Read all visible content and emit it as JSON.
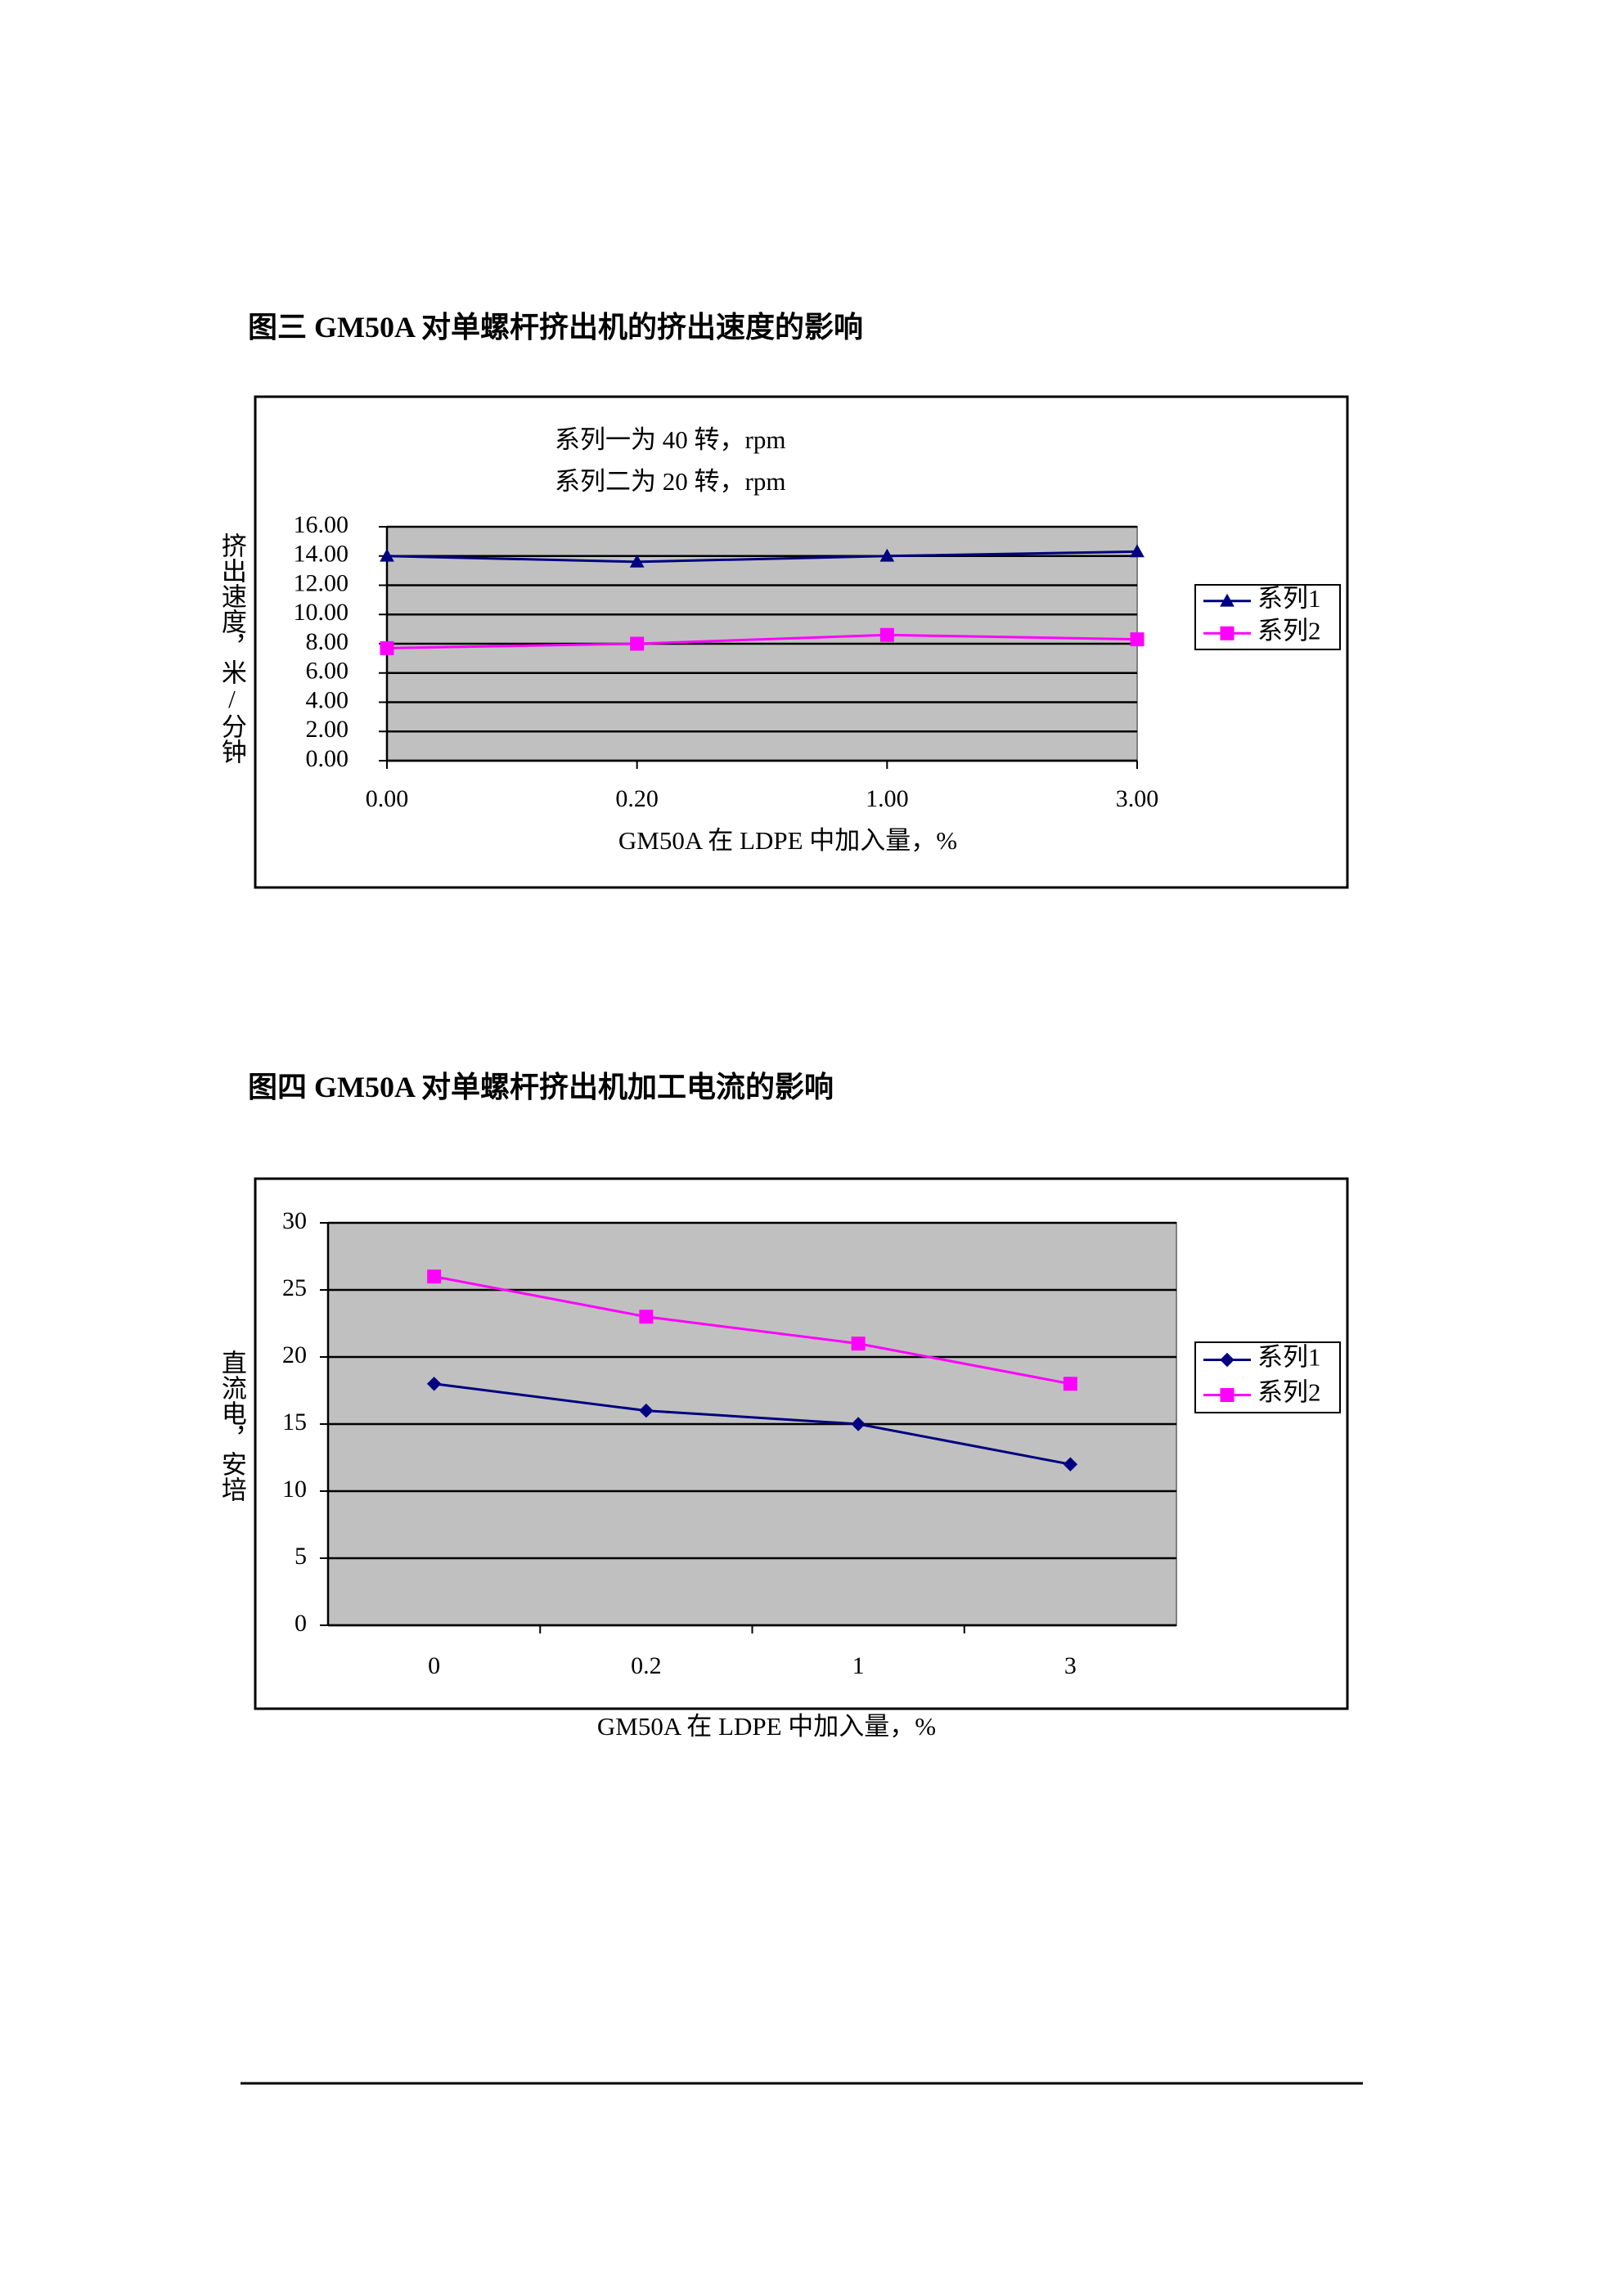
{
  "chart_data": [
    {
      "type": "line",
      "title": "图三 GM50A 对单螺杆挤出机的挤出速度的影响",
      "annotations": [
        "系列一为 40 转，rpm",
        "系列二为 20 转，rpm"
      ],
      "y_label": "挤出速度，米/分钟",
      "x_label": "GM50A 在 LDPE 中加入量，%",
      "categories": [
        "0.00",
        "0.20",
        "1.00",
        "3.00"
      ],
      "series": [
        {
          "name": "系列1",
          "color": "#000080",
          "marker": "triangle",
          "values": [
            14.0,
            13.6,
            14.0,
            14.3
          ]
        },
        {
          "name": "系列2",
          "color": "#ff00ff",
          "marker": "square",
          "values": [
            7.7,
            8.0,
            8.6,
            8.3
          ]
        }
      ],
      "ylim": [
        0,
        16
      ],
      "yticks": [
        {
          "value": 0,
          "label": "0.00"
        },
        {
          "value": 2,
          "label": "2.00"
        },
        {
          "value": 4,
          "label": "4.00"
        },
        {
          "value": 6,
          "label": "6.00"
        },
        {
          "value": 8,
          "label": "8.00"
        },
        {
          "value": 10,
          "label": "10.00"
        },
        {
          "value": 12,
          "label": "12.00"
        },
        {
          "value": 14,
          "label": "14.00"
        },
        {
          "value": 16,
          "label": "16.00"
        }
      ],
      "grid": true,
      "plot_background": "#c0c0c0",
      "legend": "right"
    },
    {
      "type": "line",
      "title": "图四  GM50A 对单螺杆挤出机加工电流的影响",
      "y_label": "直流电，安培",
      "x_label": "GM50A 在 LDPE 中加入量，%",
      "categories": [
        "0",
        "0.2",
        "1",
        "3"
      ],
      "series": [
        {
          "name": "系列1",
          "color": "#000080",
          "marker": "diamond",
          "values": [
            18,
            16,
            15,
            12
          ]
        },
        {
          "name": "系列2",
          "color": "#ff00ff",
          "marker": "square",
          "values": [
            26,
            23,
            21,
            18
          ]
        }
      ],
      "ylim": [
        0,
        30
      ],
      "yticks": [
        0,
        5,
        10,
        15,
        20,
        25,
        30
      ],
      "grid": true,
      "plot_background": "#c0c0c0",
      "legend": "right"
    }
  ]
}
